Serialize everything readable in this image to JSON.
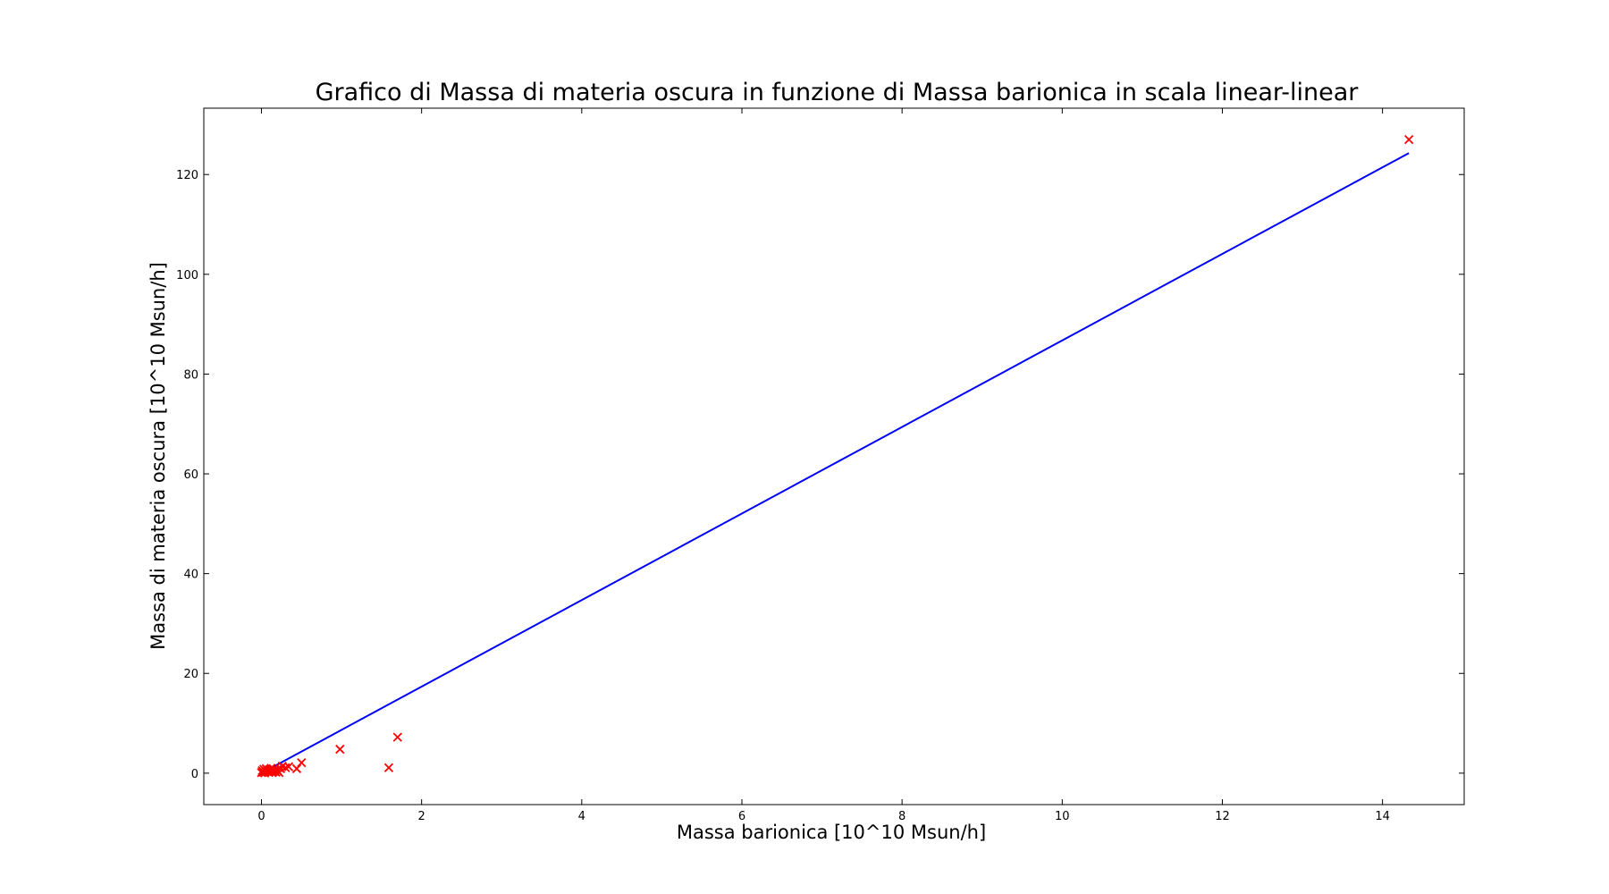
{
  "chart_data": {
    "type": "scatter",
    "title": "Grafico di Massa di materia oscura in funzione di Massa barionica in scala linear-linear",
    "xlabel": "Massa barionica [10^10 Msun/h]",
    "ylabel": "Massa di materia oscura [10^10 Msun/h]",
    "xlim": [
      -0.72,
      15.02
    ],
    "ylim": [
      -6.3,
      133.3
    ],
    "xticks": [
      0,
      2,
      4,
      6,
      8,
      10,
      12,
      14
    ],
    "yticks": [
      0,
      20,
      40,
      60,
      80,
      100,
      120
    ],
    "grid": false,
    "legend": "none",
    "series": [
      {
        "kind": "scatter",
        "marker": "x",
        "color": "#ff0000",
        "points": [
          [
            0.0,
            0.1
          ],
          [
            0.01,
            0.5
          ],
          [
            0.02,
            0.2
          ],
          [
            0.03,
            0.8
          ],
          [
            0.04,
            0.05
          ],
          [
            0.05,
            0.4
          ],
          [
            0.06,
            0.9
          ],
          [
            0.07,
            0.3
          ],
          [
            0.08,
            0.6
          ],
          [
            0.09,
            0.15
          ],
          [
            0.1,
            0.7
          ],
          [
            0.11,
            0.35
          ],
          [
            0.12,
            1.0
          ],
          [
            0.13,
            0.25
          ],
          [
            0.14,
            0.55
          ],
          [
            0.15,
            0.8
          ],
          [
            0.16,
            0.45
          ],
          [
            0.17,
            0.3
          ],
          [
            0.18,
            0.2
          ],
          [
            0.19,
            0.65
          ],
          [
            0.2,
            0.5
          ],
          [
            0.22,
            0.1
          ],
          [
            0.24,
            0.9
          ],
          [
            0.26,
            1.4
          ],
          [
            0.3,
            1.1
          ],
          [
            0.34,
            1.3
          ],
          [
            0.44,
            0.9
          ],
          [
            0.5,
            2.1
          ],
          [
            0.98,
            4.8
          ],
          [
            1.59,
            1.1
          ],
          [
            1.7,
            7.2
          ],
          [
            14.33,
            127.0
          ]
        ]
      },
      {
        "kind": "line",
        "color": "#0000ff",
        "points": [
          [
            0.0,
            0.0
          ],
          [
            14.33,
            124.3
          ]
        ]
      }
    ]
  }
}
